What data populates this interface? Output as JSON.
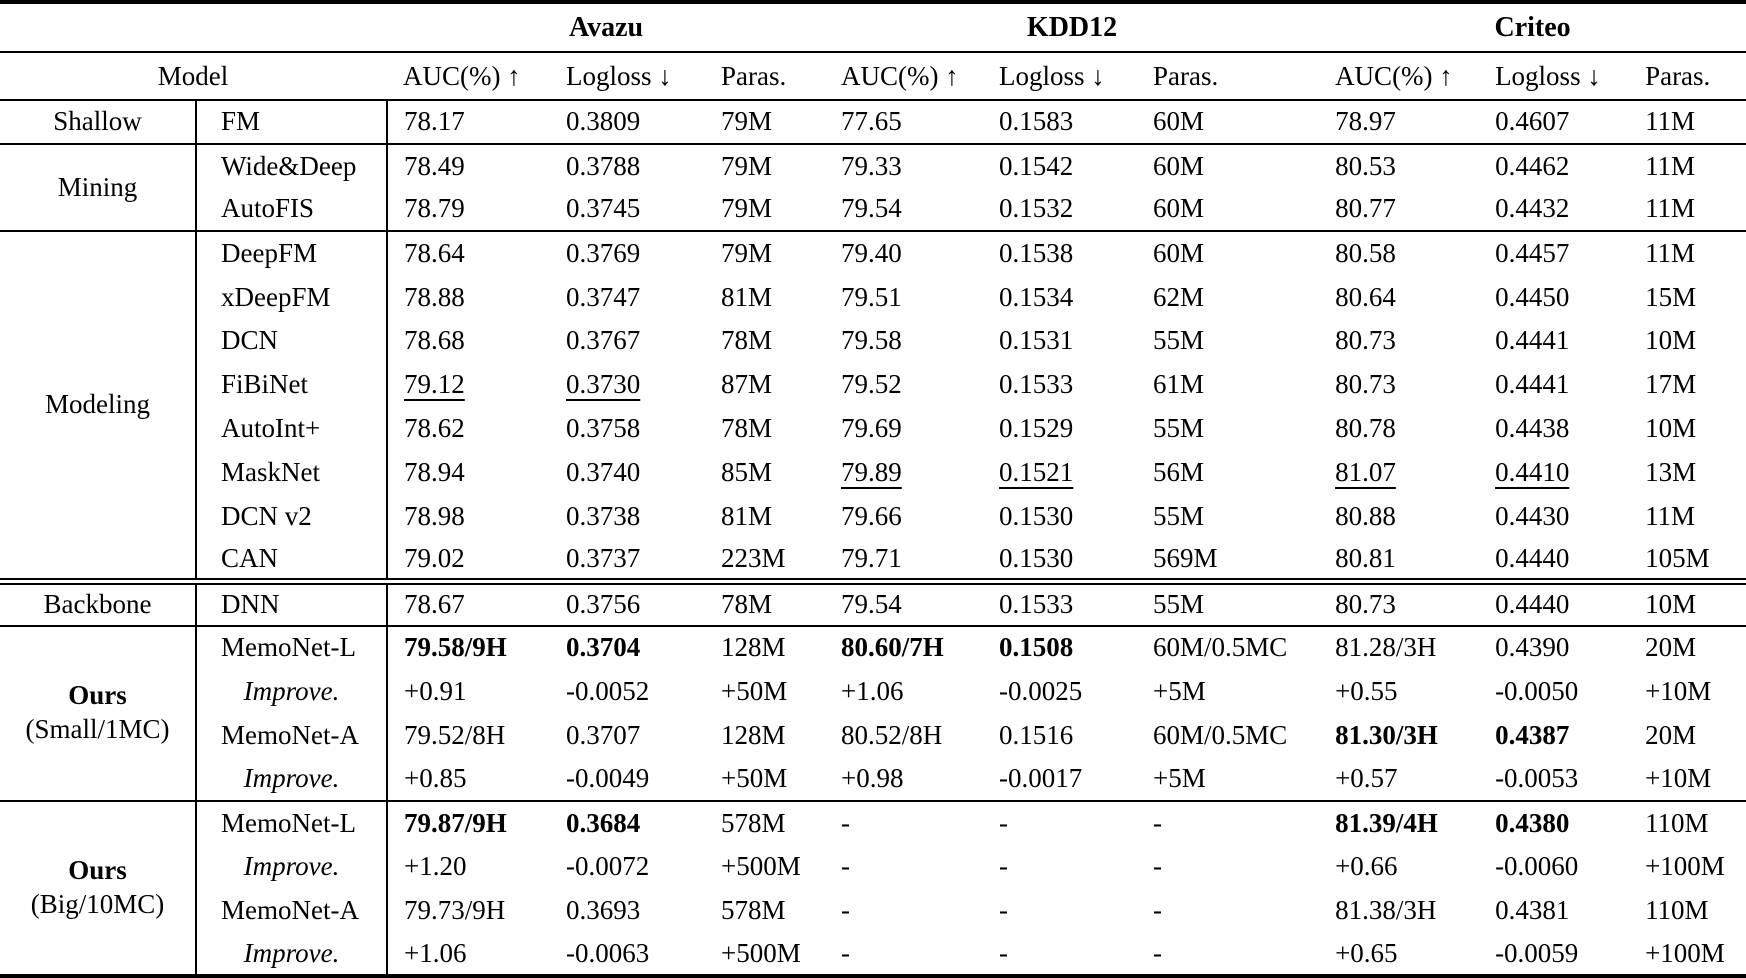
{
  "model_header": "Model",
  "datasets": [
    {
      "name": "Avazu"
    },
    {
      "name": "KDD12"
    },
    {
      "name": "Criteo"
    }
  ],
  "metric_headers": [
    "AUC(%) ↑",
    "Logloss ↓",
    "Paras."
  ],
  "text_color": "#000000",
  "background_color": "#ffffff",
  "groups": [
    {
      "id": "shallow",
      "label": "Shallow",
      "sublabel": "",
      "bold_label": false,
      "rule": "single",
      "rows": [
        {
          "model": "FM",
          "italic": false,
          "cells": [
            [
              "78.17",
              ""
            ],
            [
              "0.3809",
              ""
            ],
            [
              "79M",
              ""
            ],
            [
              "77.65",
              ""
            ],
            [
              "0.1583",
              ""
            ],
            [
              "60M",
              ""
            ],
            [
              "78.97",
              ""
            ],
            [
              "0.4607",
              ""
            ],
            [
              "11M",
              ""
            ]
          ]
        }
      ]
    },
    {
      "id": "mining",
      "label": "Mining",
      "sublabel": "",
      "bold_label": false,
      "rule": "single",
      "rows": [
        {
          "model": "Wide&Deep",
          "italic": false,
          "cells": [
            [
              "78.49",
              ""
            ],
            [
              "0.3788",
              ""
            ],
            [
              "79M",
              ""
            ],
            [
              "79.33",
              ""
            ],
            [
              "0.1542",
              ""
            ],
            [
              "60M",
              ""
            ],
            [
              "80.53",
              ""
            ],
            [
              "0.4462",
              ""
            ],
            [
              "11M",
              ""
            ]
          ]
        },
        {
          "model": "AutoFIS",
          "italic": false,
          "cells": [
            [
              "78.79",
              ""
            ],
            [
              "0.3745",
              ""
            ],
            [
              "79M",
              ""
            ],
            [
              "79.54",
              ""
            ],
            [
              "0.1532",
              ""
            ],
            [
              "60M",
              ""
            ],
            [
              "80.77",
              ""
            ],
            [
              "0.4432",
              ""
            ],
            [
              "11M",
              ""
            ]
          ]
        }
      ]
    },
    {
      "id": "modeling",
      "label": "Modeling",
      "sublabel": "",
      "bold_label": false,
      "rule": "double",
      "rows": [
        {
          "model": "DeepFM",
          "italic": false,
          "cells": [
            [
              "78.64",
              ""
            ],
            [
              "0.3769",
              ""
            ],
            [
              "79M",
              ""
            ],
            [
              "79.40",
              ""
            ],
            [
              "0.1538",
              ""
            ],
            [
              "60M",
              ""
            ],
            [
              "80.58",
              ""
            ],
            [
              "0.4457",
              ""
            ],
            [
              "11M",
              ""
            ]
          ]
        },
        {
          "model": "xDeepFM",
          "italic": false,
          "cells": [
            [
              "78.88",
              ""
            ],
            [
              "0.3747",
              ""
            ],
            [
              "81M",
              ""
            ],
            [
              "79.51",
              ""
            ],
            [
              "0.1534",
              ""
            ],
            [
              "62M",
              ""
            ],
            [
              "80.64",
              ""
            ],
            [
              "0.4450",
              ""
            ],
            [
              "15M",
              ""
            ]
          ]
        },
        {
          "model": "DCN",
          "italic": false,
          "cells": [
            [
              "78.68",
              ""
            ],
            [
              "0.3767",
              ""
            ],
            [
              "78M",
              ""
            ],
            [
              "79.58",
              ""
            ],
            [
              "0.1531",
              ""
            ],
            [
              "55M",
              ""
            ],
            [
              "80.73",
              ""
            ],
            [
              "0.4441",
              ""
            ],
            [
              "10M",
              ""
            ]
          ]
        },
        {
          "model": "FiBiNet",
          "italic": false,
          "cells": [
            [
              "79.12",
              "u"
            ],
            [
              "0.3730",
              "u"
            ],
            [
              "87M",
              ""
            ],
            [
              "79.52",
              ""
            ],
            [
              "0.1533",
              ""
            ],
            [
              "61M",
              ""
            ],
            [
              "80.73",
              ""
            ],
            [
              "0.4441",
              ""
            ],
            [
              "17M",
              ""
            ]
          ]
        },
        {
          "model": "AutoInt+",
          "italic": false,
          "cells": [
            [
              "78.62",
              ""
            ],
            [
              "0.3758",
              ""
            ],
            [
              "78M",
              ""
            ],
            [
              "79.69",
              ""
            ],
            [
              "0.1529",
              ""
            ],
            [
              "55M",
              ""
            ],
            [
              "80.78",
              ""
            ],
            [
              "0.4438",
              ""
            ],
            [
              "10M",
              ""
            ]
          ]
        },
        {
          "model": "MaskNet",
          "italic": false,
          "cells": [
            [
              "78.94",
              ""
            ],
            [
              "0.3740",
              ""
            ],
            [
              "85M",
              ""
            ],
            [
              "79.89",
              "u"
            ],
            [
              "0.1521",
              "u"
            ],
            [
              "56M",
              ""
            ],
            [
              "81.07",
              "u"
            ],
            [
              "0.4410",
              "u"
            ],
            [
              "13M",
              ""
            ]
          ]
        },
        {
          "model": "DCN v2",
          "italic": false,
          "cells": [
            [
              "78.98",
              ""
            ],
            [
              "0.3738",
              ""
            ],
            [
              "81M",
              ""
            ],
            [
              "79.66",
              ""
            ],
            [
              "0.1530",
              ""
            ],
            [
              "55M",
              ""
            ],
            [
              "80.88",
              ""
            ],
            [
              "0.4430",
              ""
            ],
            [
              "11M",
              ""
            ]
          ]
        },
        {
          "model": "CAN",
          "italic": false,
          "cells": [
            [
              "79.02",
              ""
            ],
            [
              "0.3737",
              ""
            ],
            [
              "223M",
              ""
            ],
            [
              "79.71",
              ""
            ],
            [
              "0.1530",
              ""
            ],
            [
              "569M",
              ""
            ],
            [
              "80.81",
              ""
            ],
            [
              "0.4440",
              ""
            ],
            [
              "105M",
              ""
            ]
          ]
        }
      ]
    },
    {
      "id": "backbone",
      "label": "Backbone",
      "sublabel": "",
      "bold_label": false,
      "rule": "single",
      "rows": [
        {
          "model": "DNN",
          "italic": false,
          "cells": [
            [
              "78.67",
              ""
            ],
            [
              "0.3756",
              ""
            ],
            [
              "78M",
              ""
            ],
            [
              "79.54",
              ""
            ],
            [
              "0.1533",
              ""
            ],
            [
              "55M",
              ""
            ],
            [
              "80.73",
              ""
            ],
            [
              "0.4440",
              ""
            ],
            [
              "10M",
              ""
            ]
          ]
        }
      ]
    },
    {
      "id": "ours-small",
      "label": "Ours",
      "sublabel": "(Small/1MC)",
      "bold_label": true,
      "rule": "single",
      "rows": [
        {
          "model": "MemoNet-L",
          "italic": false,
          "cells": [
            [
              "79.58/9H",
              "b"
            ],
            [
              "0.3704",
              "b"
            ],
            [
              "128M",
              ""
            ],
            [
              "80.60/7H",
              "b"
            ],
            [
              "0.1508",
              "b"
            ],
            [
              "60M/0.5MC",
              ""
            ],
            [
              "81.28/3H",
              ""
            ],
            [
              "0.4390",
              ""
            ],
            [
              "20M",
              ""
            ]
          ]
        },
        {
          "model": "Improve.",
          "italic": true,
          "cells": [
            [
              "+0.91",
              ""
            ],
            [
              "-0.0052",
              ""
            ],
            [
              "+50M",
              ""
            ],
            [
              "+1.06",
              ""
            ],
            [
              "-0.0025",
              ""
            ],
            [
              "+5M",
              ""
            ],
            [
              "+0.55",
              ""
            ],
            [
              "-0.0050",
              ""
            ],
            [
              "+10M",
              ""
            ]
          ]
        },
        {
          "model": "MemoNet-A",
          "italic": false,
          "cells": [
            [
              "79.52/8H",
              ""
            ],
            [
              "0.3707",
              ""
            ],
            [
              "128M",
              ""
            ],
            [
              "80.52/8H",
              ""
            ],
            [
              "0.1516",
              ""
            ],
            [
              "60M/0.5MC",
              ""
            ],
            [
              "81.30/3H",
              "b"
            ],
            [
              "0.4387",
              "b"
            ],
            [
              "20M",
              ""
            ]
          ]
        },
        {
          "model": "Improve.",
          "italic": true,
          "cells": [
            [
              "+0.85",
              ""
            ],
            [
              "-0.0049",
              ""
            ],
            [
              "+50M",
              ""
            ],
            [
              "+0.98",
              ""
            ],
            [
              "-0.0017",
              ""
            ],
            [
              "+5M",
              ""
            ],
            [
              "+0.57",
              ""
            ],
            [
              "-0.0053",
              ""
            ],
            [
              "+10M",
              ""
            ]
          ]
        }
      ]
    },
    {
      "id": "ours-big",
      "label": "Ours",
      "sublabel": "(Big/10MC)",
      "bold_label": true,
      "rule": "none",
      "rows": [
        {
          "model": "MemoNet-L",
          "italic": false,
          "cells": [
            [
              "79.87/9H",
              "b"
            ],
            [
              "0.3684",
              "b"
            ],
            [
              "578M",
              ""
            ],
            [
              "-",
              ""
            ],
            [
              "-",
              ""
            ],
            [
              "-",
              ""
            ],
            [
              "81.39/4H",
              "b"
            ],
            [
              "0.4380",
              "b"
            ],
            [
              "110M",
              ""
            ]
          ]
        },
        {
          "model": "Improve.",
          "italic": true,
          "cells": [
            [
              "+1.20",
              ""
            ],
            [
              "-0.0072",
              ""
            ],
            [
              "+500M",
              ""
            ],
            [
              "-",
              ""
            ],
            [
              "-",
              ""
            ],
            [
              "-",
              ""
            ],
            [
              "+0.66",
              ""
            ],
            [
              "-0.0060",
              ""
            ],
            [
              "+100M",
              ""
            ]
          ]
        },
        {
          "model": "MemoNet-A",
          "italic": false,
          "cells": [
            [
              "79.73/9H",
              ""
            ],
            [
              "0.3693",
              ""
            ],
            [
              "578M",
              ""
            ],
            [
              "-",
              ""
            ],
            [
              "-",
              ""
            ],
            [
              "-",
              ""
            ],
            [
              "81.38/3H",
              ""
            ],
            [
              "0.4381",
              ""
            ],
            [
              "110M",
              ""
            ]
          ]
        },
        {
          "model": "Improve.",
          "italic": true,
          "cells": [
            [
              "+1.06",
              ""
            ],
            [
              "-0.0063",
              ""
            ],
            [
              "+500M",
              ""
            ],
            [
              "-",
              ""
            ],
            [
              "-",
              ""
            ],
            [
              "-",
              ""
            ],
            [
              "+0.65",
              ""
            ],
            [
              "-0.0059",
              ""
            ],
            [
              "+100M",
              ""
            ]
          ]
        }
      ]
    }
  ]
}
